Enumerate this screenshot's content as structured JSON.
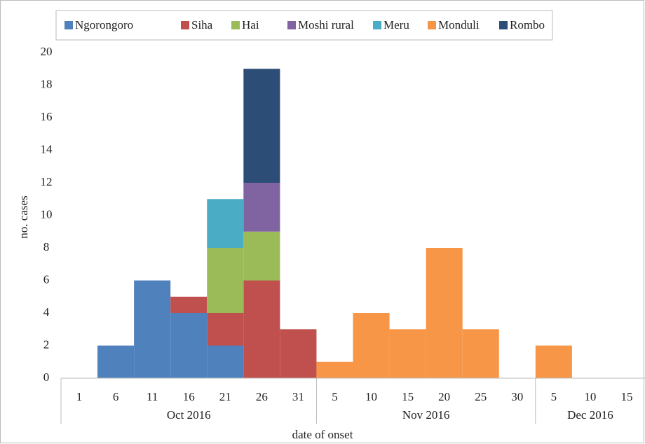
{
  "chart_data": {
    "type": "bar",
    "stacked": true,
    "y_label": "no. cases",
    "x_label": "date of onset",
    "categories": [
      "1",
      "6",
      "11",
      "16",
      "21",
      "26",
      "31",
      "5",
      "10",
      "15",
      "20",
      "25",
      "30",
      "5",
      "10",
      "15"
    ],
    "groups": [
      {
        "label": "Oct 2016",
        "count": 7
      },
      {
        "label": "Nov 2016",
        "count": 6
      },
      {
        "label": "Dec 2016",
        "count": 3
      }
    ],
    "series": [
      {
        "name": "Ngorongoro",
        "color": "#4f81bd",
        "values": [
          0,
          2,
          6,
          4,
          2,
          0,
          0,
          0,
          0,
          0,
          0,
          0,
          0,
          0,
          0,
          0
        ]
      },
      {
        "name": "Siha",
        "color": "#c0504d",
        "values": [
          0,
          0,
          0,
          1,
          2,
          6,
          3,
          0,
          0,
          0,
          0,
          0,
          0,
          0,
          0,
          0
        ]
      },
      {
        "name": "Hai",
        "color": "#9bbb59",
        "values": [
          0,
          0,
          0,
          0,
          4,
          3,
          0,
          0,
          0,
          0,
          0,
          0,
          0,
          0,
          0,
          0
        ]
      },
      {
        "name": "Moshi rural",
        "color": "#8064a2",
        "values": [
          0,
          0,
          0,
          0,
          0,
          3,
          0,
          0,
          0,
          0,
          0,
          0,
          0,
          0,
          0,
          0
        ]
      },
      {
        "name": "Meru",
        "color": "#4bacc6",
        "values": [
          0,
          0,
          0,
          0,
          3,
          0,
          0,
          0,
          0,
          0,
          0,
          0,
          0,
          0,
          0,
          0
        ]
      },
      {
        "name": "Monduli",
        "color": "#f79646",
        "values": [
          0,
          0,
          0,
          0,
          0,
          0,
          0,
          1,
          4,
          3,
          8,
          3,
          0,
          2,
          0,
          0
        ]
      },
      {
        "name": "Rombo",
        "color": "#2c4d75",
        "values": [
          0,
          0,
          0,
          0,
          0,
          7,
          0,
          0,
          0,
          0,
          0,
          0,
          0,
          0,
          0,
          0
        ]
      }
    ],
    "ylim": [
      0,
      20
    ],
    "yticks": [
      0,
      2,
      4,
      6,
      8,
      10,
      12,
      14,
      16,
      18,
      20
    ],
    "legend": "top"
  }
}
